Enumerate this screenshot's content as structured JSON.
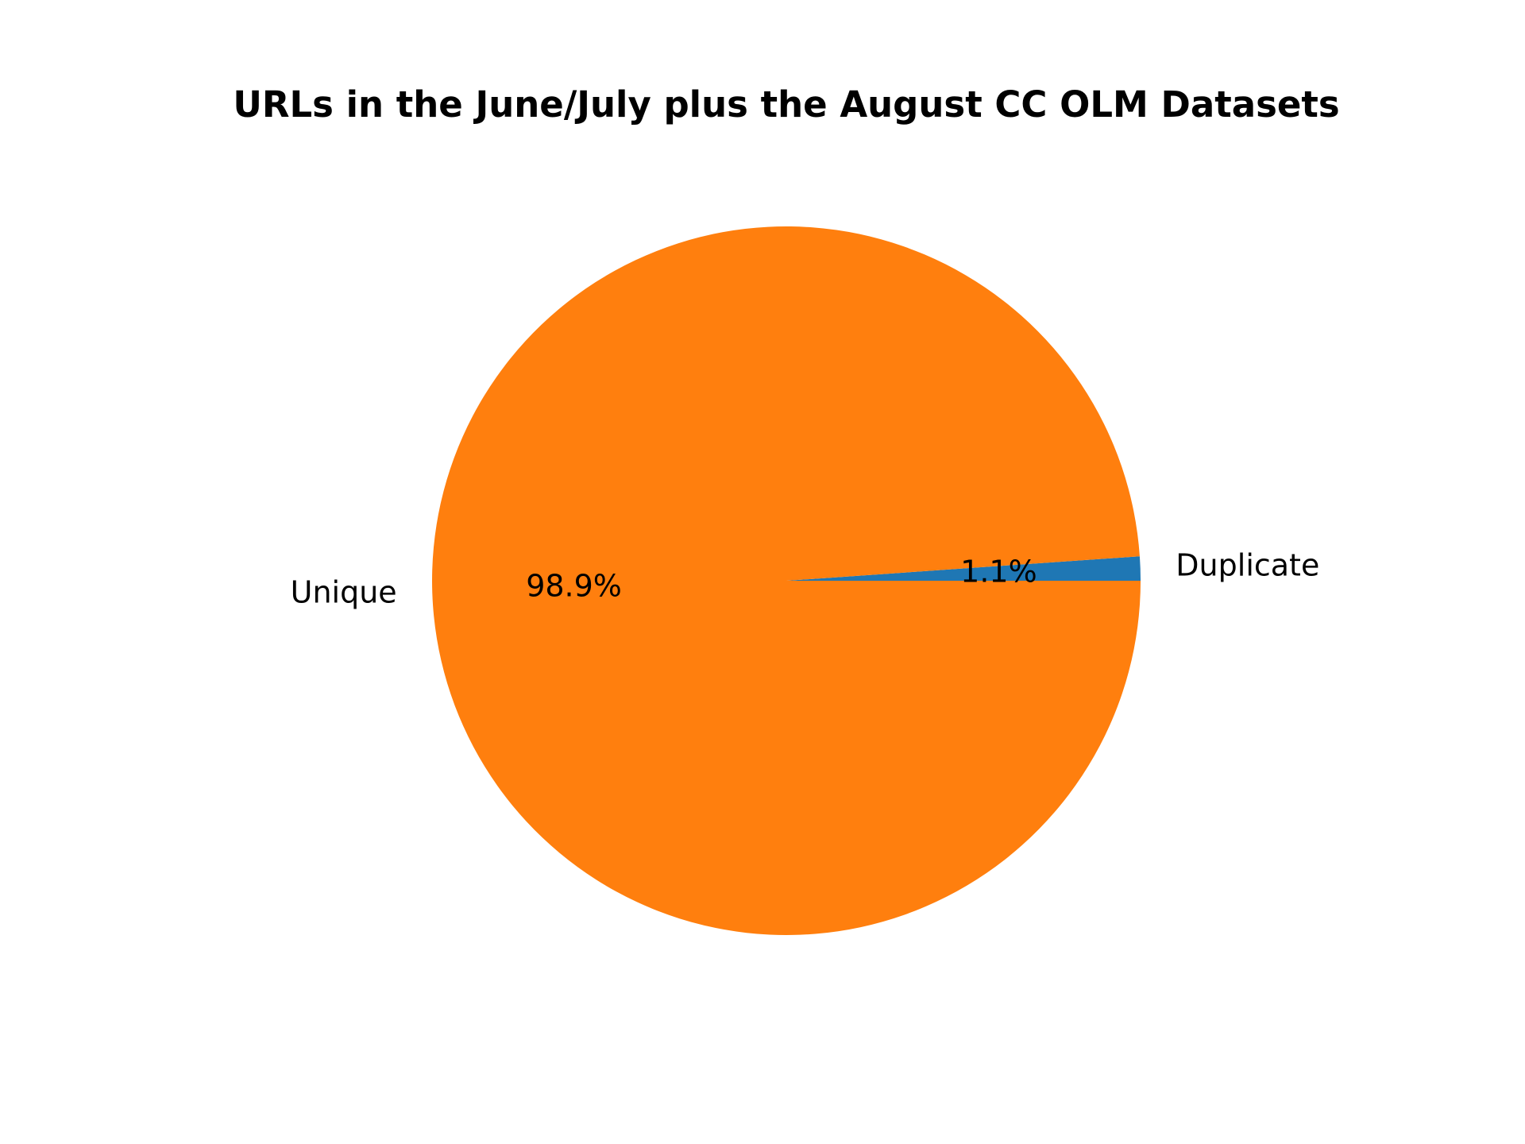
{
  "chart_data": {
    "type": "pie",
    "title": "URLs in the June/July plus the August CC OLM Datasets",
    "slices": [
      {
        "label": "Duplicate",
        "value": 1.1,
        "pct_label": "1.1%",
        "color": "#1f77b4"
      },
      {
        "label": "Unique",
        "value": 98.9,
        "pct_label": "98.9%",
        "color": "#ff7f0e"
      }
    ],
    "start_angle": 0,
    "direction": "counterclockwise"
  }
}
